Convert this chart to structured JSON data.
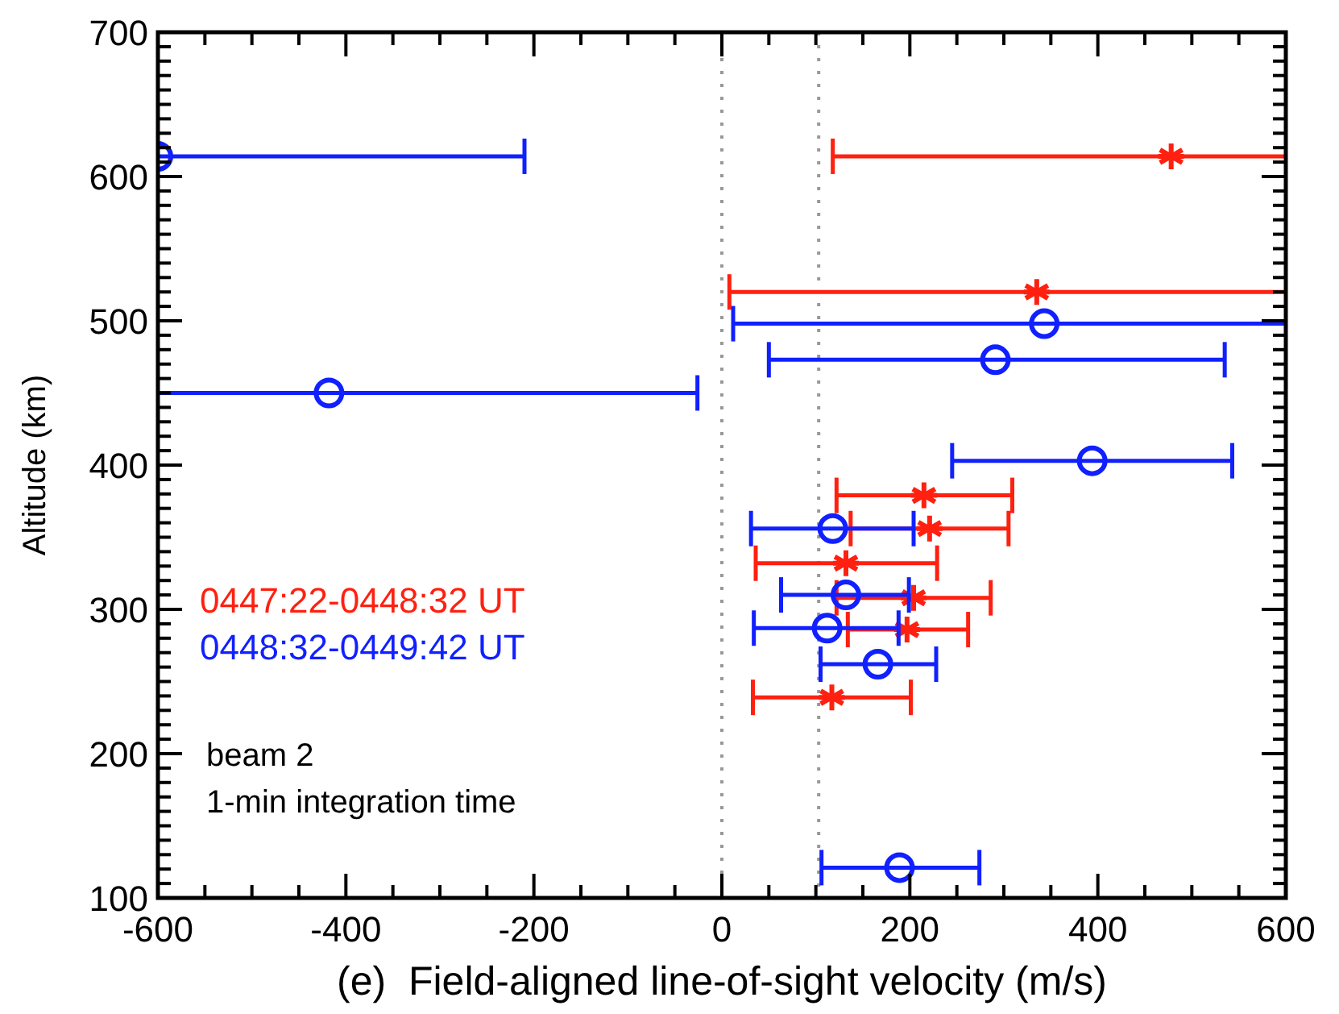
{
  "chart_data": {
    "type": "scatter",
    "xlabel": "(e)  Field-aligned line-of-sight velocity (m/s)",
    "ylabel": "Altitude (km)",
    "xlim": [
      -600,
      600
    ],
    "ylim": [
      100,
      700
    ],
    "xticks": [
      -600,
      {
        "value": -550,
        "label": null
      },
      {
        "value": -500,
        "label": null
      },
      {
        "value": -450,
        "label": null
      },
      -400,
      {
        "value": -350,
        "label": null
      },
      {
        "value": -300,
        "label": null
      },
      {
        "value": -250,
        "label": null
      },
      -200,
      {
        "value": -150,
        "label": null
      },
      {
        "value": -100,
        "label": null
      },
      {
        "value": -50,
        "label": null
      },
      0,
      {
        "value": 50,
        "label": null
      },
      {
        "value": 100,
        "label": null
      },
      {
        "value": 150,
        "label": null
      },
      200,
      {
        "value": 250,
        "label": null
      },
      {
        "value": 300,
        "label": null
      },
      {
        "value": 350,
        "label": null
      },
      400,
      {
        "value": 450,
        "label": null
      },
      {
        "value": 500,
        "label": null
      },
      {
        "value": 550,
        "label": null
      },
      600
    ],
    "yticks": [
      100,
      {
        "value": 110,
        "label": null
      },
      {
        "value": 120,
        "label": null
      },
      {
        "value": 130,
        "label": null
      },
      {
        "value": 140,
        "label": null
      },
      {
        "value": 150,
        "label": null
      },
      {
        "value": 160,
        "label": null
      },
      {
        "value": 170,
        "label": null
      },
      {
        "value": 180,
        "label": null
      },
      {
        "value": 190,
        "label": null
      },
      200,
      {
        "value": 210,
        "label": null
      },
      {
        "value": 220,
        "label": null
      },
      {
        "value": 230,
        "label": null
      },
      {
        "value": 240,
        "label": null
      },
      {
        "value": 250,
        "label": null
      },
      {
        "value": 260,
        "label": null
      },
      {
        "value": 270,
        "label": null
      },
      {
        "value": 280,
        "label": null
      },
      {
        "value": 290,
        "label": null
      },
      300,
      {
        "value": 310,
        "label": null
      },
      {
        "value": 320,
        "label": null
      },
      {
        "value": 330,
        "label": null
      },
      {
        "value": 340,
        "label": null
      },
      {
        "value": 350,
        "label": null
      },
      {
        "value": 360,
        "label": null
      },
      {
        "value": 370,
        "label": null
      },
      {
        "value": 380,
        "label": null
      },
      {
        "value": 390,
        "label": null
      },
      400,
      {
        "value": 410,
        "label": null
      },
      {
        "value": 420,
        "label": null
      },
      {
        "value": 430,
        "label": null
      },
      {
        "value": 440,
        "label": null
      },
      {
        "value": 450,
        "label": null
      },
      {
        "value": 460,
        "label": null
      },
      {
        "value": 470,
        "label": null
      },
      {
        "value": 480,
        "label": null
      },
      {
        "value": 490,
        "label": null
      },
      500,
      {
        "value": 510,
        "label": null
      },
      {
        "value": 520,
        "label": null
      },
      {
        "value": 530,
        "label": null
      },
      {
        "value": 540,
        "label": null
      },
      {
        "value": 550,
        "label": null
      },
      {
        "value": 560,
        "label": null
      },
      {
        "value": 570,
        "label": null
      },
      {
        "value": 580,
        "label": null
      },
      {
        "value": 590,
        "label": null
      },
      600,
      {
        "value": 610,
        "label": null
      },
      {
        "value": 620,
        "label": null
      },
      {
        "value": 630,
        "label": null
      },
      {
        "value": 640,
        "label": null
      },
      {
        "value": 650,
        "label": null
      },
      {
        "value": 660,
        "label": null
      },
      {
        "value": 670,
        "label": null
      },
      {
        "value": 680,
        "label": null
      },
      {
        "value": 690,
        "label": null
      },
      700
    ],
    "grid": false,
    "legend": "left",
    "ref_lines": [
      {
        "axis": "x",
        "value": 0,
        "color": "#999999",
        "line_style": "dotted"
      },
      {
        "axis": "x",
        "value": 103,
        "color": "#999999",
        "line_style": "dotted"
      }
    ],
    "annotations": [
      "beam 2",
      "1-min integration time"
    ],
    "series": [
      {
        "name": "0447:22-0448:32 UT",
        "color": "#ff2010",
        "marker": "cross",
        "x": [
          478,
          335,
          215,
          221,
          132,
          204,
          197,
          117
        ],
        "values": [
          614,
          520,
          379,
          356,
          332,
          308,
          286,
          239
        ],
        "xerrors": [
          [
            118,
            600
          ],
          [
            8,
            600
          ],
          [
            122,
            309
          ],
          [
            137,
            305
          ],
          [
            36,
            229
          ],
          [
            122,
            286
          ],
          [
            134,
            262
          ],
          [
            33,
            201
          ]
        ]
      },
      {
        "name": "0448:32-0449:42 UT",
        "color": "#1020ff",
        "marker": "circle",
        "x": [
          -600,
          343,
          291,
          -418,
          394,
          118,
          132,
          112,
          166,
          189
        ],
        "values": [
          614,
          498,
          473,
          450,
          403,
          356,
          310,
          287,
          262,
          121
        ],
        "xerrors": [
          [
            -600,
            -210
          ],
          [
            12,
            600
          ],
          [
            50,
            535
          ],
          [
            -600,
            -26
          ],
          [
            245,
            543
          ],
          [
            31,
            204
          ],
          [
            63,
            199
          ],
          [
            34,
            188
          ],
          [
            105,
            228
          ],
          [
            106,
            274
          ]
        ]
      }
    ]
  }
}
